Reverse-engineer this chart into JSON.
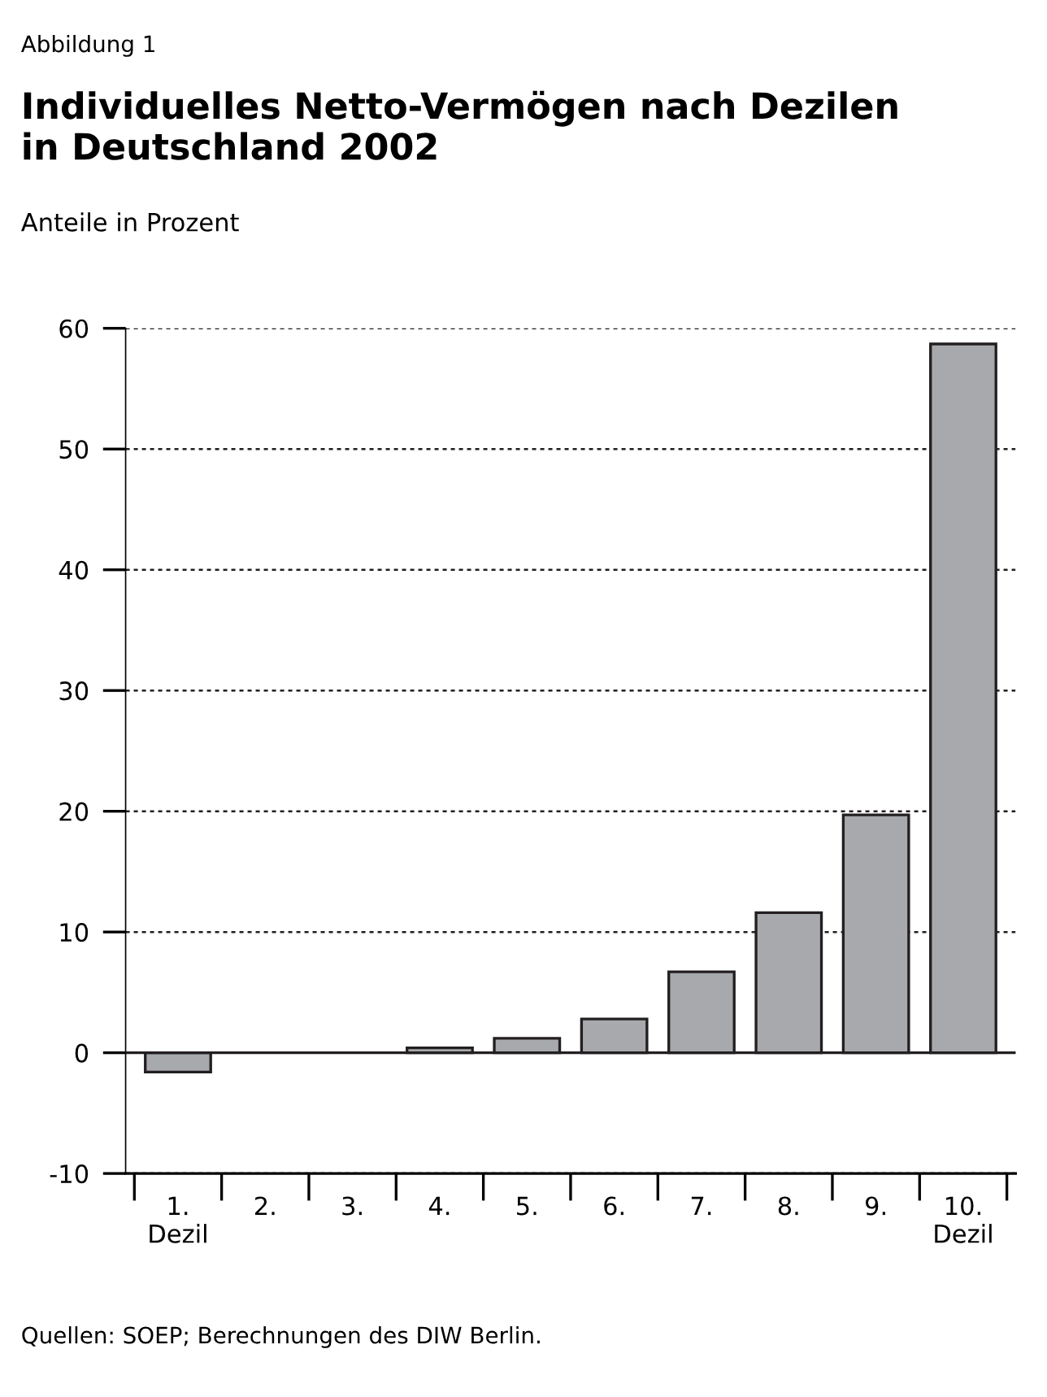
{
  "chart_data": {
    "type": "bar",
    "title": "Individuelles Netto-Vermögen nach Dezilen\nin Deutschland 2002",
    "subtitle": "Anteile in Prozent",
    "categories": [
      "1.\nDezil",
      "2.",
      "3.",
      "4.",
      "5.",
      "6.",
      "7.",
      "8.",
      "9.",
      "10.\nDezil"
    ],
    "values": [
      -1.6,
      0,
      0,
      0.4,
      1.2,
      2.8,
      6.7,
      11.6,
      19.7,
      58.7
    ],
    "color": "#a7a9ac",
    "ylim": [
      -10,
      60
    ],
    "yticks": [
      -10,
      0,
      10,
      20,
      30,
      40,
      50,
      60
    ],
    "grid": "y",
    "annotations": [
      "Abbildung 1",
      "Quellen: SOEP; Berechnungen des DIW Berlin."
    ]
  }
}
